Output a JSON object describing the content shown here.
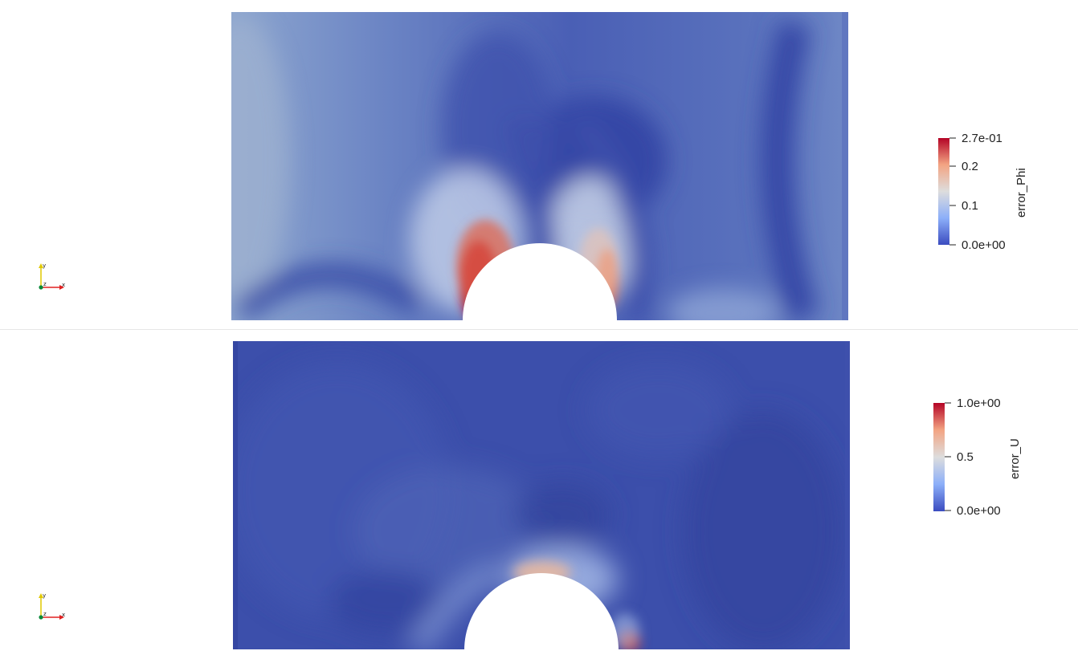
{
  "views": [
    {
      "id": "top",
      "field": "error_Phi",
      "colorbar": {
        "title": "error_Phi",
        "labels": [
          "2.7e-01",
          "0.2",
          "0.1",
          "0.0e+00"
        ],
        "range": [
          0.0,
          0.27
        ]
      }
    },
    {
      "id": "bottom",
      "field": "error_U",
      "colorbar": {
        "title": "error_U",
        "labels": [
          "1.0e+00",
          "0.5",
          "0.0e+00"
        ],
        "range": [
          0.0,
          1.0
        ]
      }
    }
  ],
  "colormap": {
    "name": "Cool to Warm",
    "low": "#3b4cc0",
    "mid": "#dddddd",
    "high": "#b40426"
  },
  "orientation_axes": {
    "x_color": "#ff0000",
    "y_color": "#ffff00",
    "z_color": "#00aa00",
    "x_label": "x",
    "y_label": "y",
    "z_label": "z"
  }
}
